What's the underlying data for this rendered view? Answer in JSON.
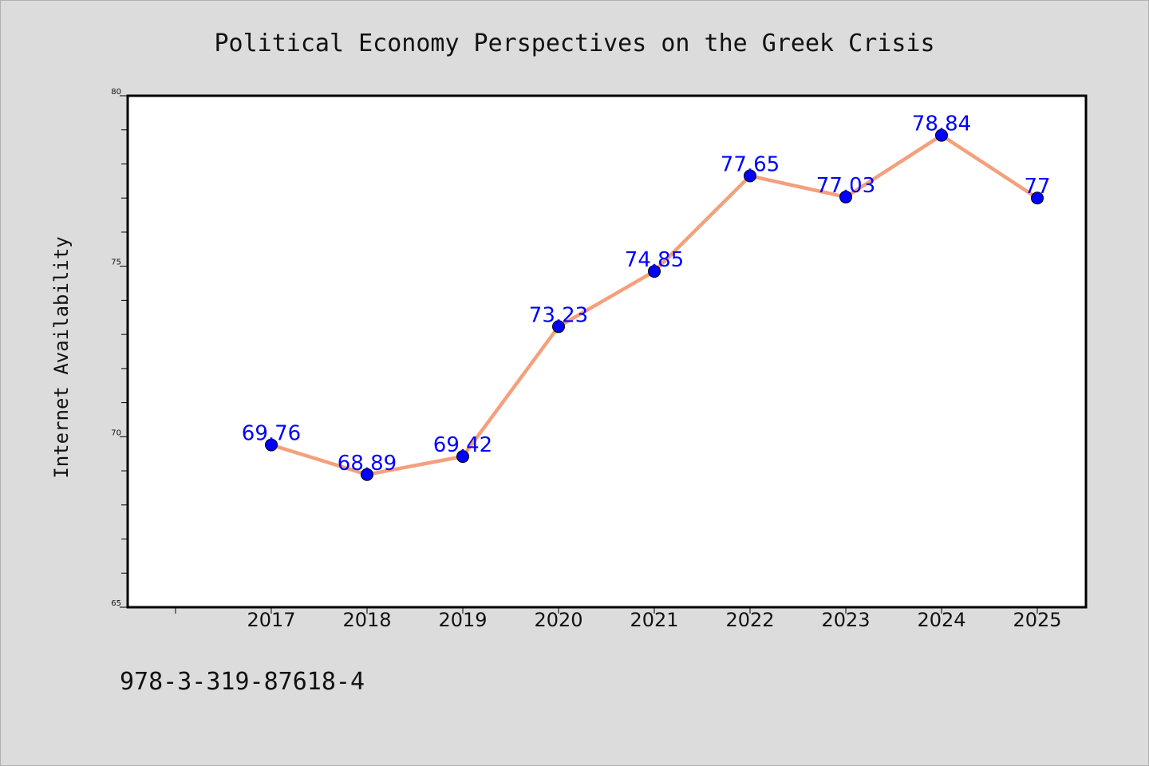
{
  "chart_data": {
    "type": "line",
    "title": "Political Economy Perspectives on the Greek Crisis",
    "ylabel": "Internet Availability",
    "xlabel": "",
    "categories": [
      "2017",
      "2018",
      "2019",
      "2020",
      "2021",
      "2022",
      "2023",
      "2024",
      "2025"
    ],
    "values": [
      69.76,
      68.89,
      69.42,
      73.23,
      74.85,
      77.65,
      77.03,
      78.84,
      77
    ],
    "data_labels": [
      "69.76",
      "68.89",
      "69.42",
      "73.23",
      "74.85",
      "77.65",
      "77.03",
      "78.84",
      "77"
    ],
    "ylim": [
      65,
      80
    ],
    "yticks": [
      "65",
      "70",
      "75",
      "80"
    ],
    "grid": false,
    "line_color": "#f4a07c",
    "marker_color": "#0000ff",
    "label_color": "#0000ff",
    "plot_background": "#ffffff",
    "figure_background": "#dcdcdc"
  },
  "footer": {
    "isbn": "978-3-319-87618-4"
  }
}
